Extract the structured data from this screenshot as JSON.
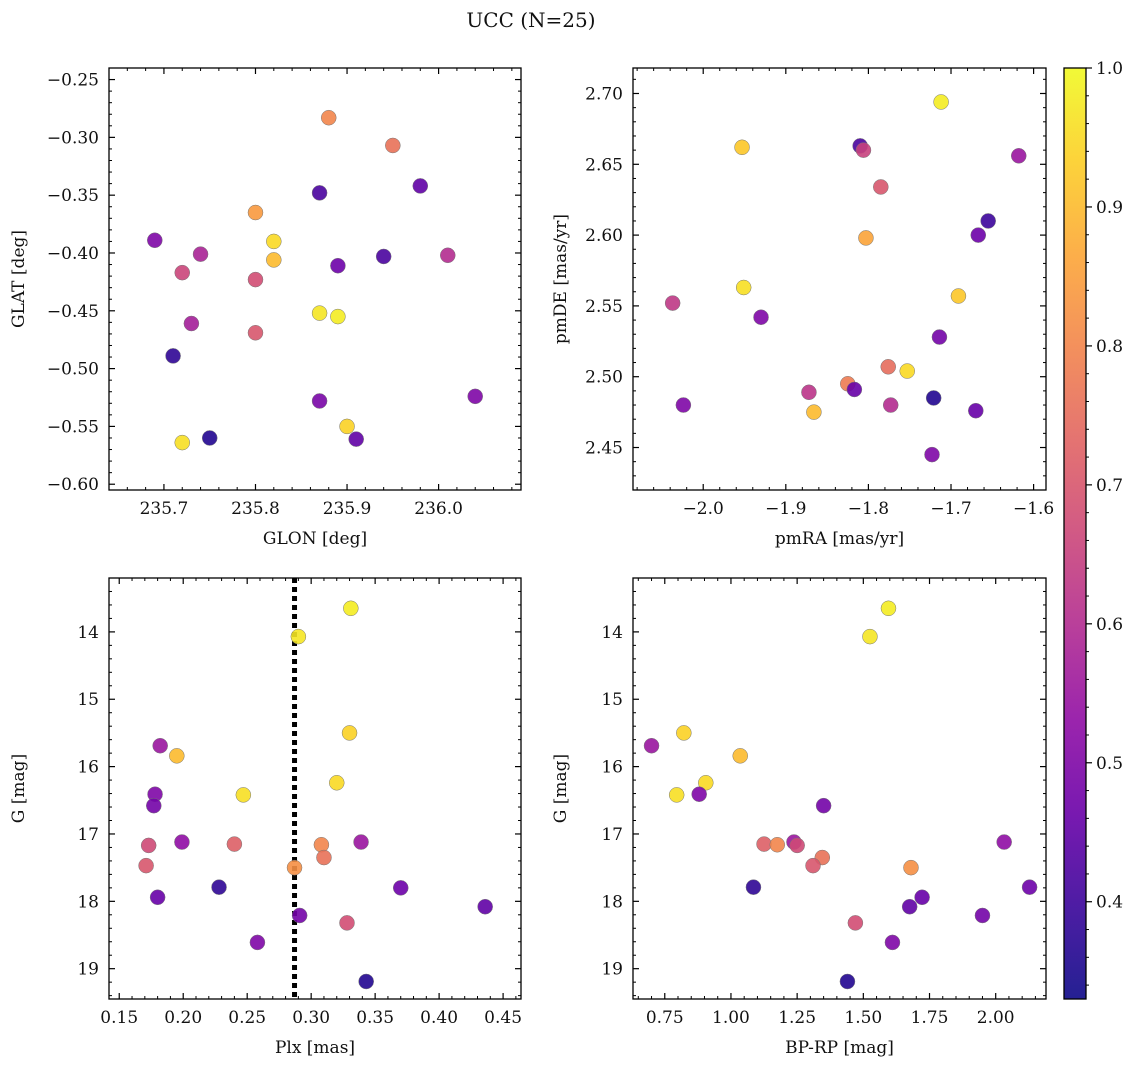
{
  "figure": {
    "title": "UCC (N=25)"
  },
  "colorbar": {
    "vmin": 0.33,
    "vmax": 1.0,
    "ticks": [
      0.4,
      0.5,
      0.6,
      0.7,
      0.8,
      0.9,
      1.0
    ],
    "tick_labels": [
      "0.4",
      "0.5",
      "0.6",
      "0.7",
      "0.8",
      "0.9",
      "1.0"
    ],
    "colormap": [
      "#0d0887",
      "#3a049a",
      "#6a00a8",
      "#900da4",
      "#b12a90",
      "#cc4778",
      "#e16462",
      "#f2844b",
      "#fca636",
      "#fcce25",
      "#f0f921"
    ]
  },
  "chart_data": [
    {
      "type": "scatter",
      "panel": "top-left",
      "xlabel": "GLON [deg]",
      "ylabel": "GLAT [deg]",
      "xlim": [
        235.64,
        236.09
      ],
      "ylim": [
        -0.605,
        -0.24
      ],
      "y_inverted": false,
      "xticks": [
        235.7,
        235.8,
        235.9,
        236.0
      ],
      "xtick_labels": [
        "235.7",
        "235.8",
        "235.9",
        "236.0"
      ],
      "yticks": [
        -0.6,
        -0.55,
        -0.5,
        -0.45,
        -0.4,
        -0.35,
        -0.3,
        -0.25
      ],
      "ytick_labels": [
        "−0.60",
        "−0.55",
        "−0.50",
        "−0.45",
        "−0.40",
        "−0.35",
        "−0.30",
        "−0.25"
      ],
      "points": [
        {
          "x": 235.88,
          "y": -0.283,
          "c": 0.8
        },
        {
          "x": 235.95,
          "y": -0.307,
          "c": 0.76
        },
        {
          "x": 235.98,
          "y": -0.342,
          "c": 0.45
        },
        {
          "x": 235.87,
          "y": -0.348,
          "c": 0.42
        },
        {
          "x": 235.8,
          "y": -0.365,
          "c": 0.84
        },
        {
          "x": 235.69,
          "y": -0.389,
          "c": 0.5
        },
        {
          "x": 235.82,
          "y": -0.39,
          "c": 0.95
        },
        {
          "x": 235.74,
          "y": -0.401,
          "c": 0.58
        },
        {
          "x": 236.01,
          "y": -0.402,
          "c": 0.6
        },
        {
          "x": 235.94,
          "y": -0.403,
          "c": 0.42
        },
        {
          "x": 235.82,
          "y": -0.406,
          "c": 0.9
        },
        {
          "x": 235.89,
          "y": -0.411,
          "c": 0.47
        },
        {
          "x": 235.72,
          "y": -0.417,
          "c": 0.66
        },
        {
          "x": 235.8,
          "y": -0.423,
          "c": 0.68
        },
        {
          "x": 235.87,
          "y": -0.452,
          "c": 0.97
        },
        {
          "x": 235.89,
          "y": -0.455,
          "c": 0.98
        },
        {
          "x": 235.73,
          "y": -0.461,
          "c": 0.57
        },
        {
          "x": 235.8,
          "y": -0.469,
          "c": 0.7
        },
        {
          "x": 235.71,
          "y": -0.489,
          "c": 0.38
        },
        {
          "x": 236.04,
          "y": -0.524,
          "c": 0.5
        },
        {
          "x": 235.87,
          "y": -0.528,
          "c": 0.49
        },
        {
          "x": 235.9,
          "y": -0.55,
          "c": 0.94
        },
        {
          "x": 235.75,
          "y": -0.56,
          "c": 0.36
        },
        {
          "x": 235.91,
          "y": -0.561,
          "c": 0.45
        },
        {
          "x": 235.72,
          "y": -0.564,
          "c": 0.96
        }
      ]
    },
    {
      "type": "scatter",
      "panel": "top-right",
      "xlabel": "pmRA [mas/yr]",
      "ylabel": "pmDE [mas/yr]",
      "xlim": [
        -2.085,
        -1.585
      ],
      "ylim": [
        2.42,
        2.718
      ],
      "y_inverted": false,
      "xticks": [
        -2.0,
        -1.9,
        -1.8,
        -1.7,
        -1.6
      ],
      "xtick_labels": [
        "−2.0",
        "−1.9",
        "−1.8",
        "−1.7",
        "−1.6"
      ],
      "yticks": [
        2.45,
        2.5,
        2.55,
        2.6,
        2.65,
        2.7
      ],
      "ytick_labels": [
        "2.45",
        "2.50",
        "2.55",
        "2.60",
        "2.65",
        "2.70"
      ],
      "points": [
        {
          "x": -1.712,
          "y": 2.694,
          "c": 0.98
        },
        {
          "x": -1.81,
          "y": 2.663,
          "c": 0.42
        },
        {
          "x": -1.953,
          "y": 2.662,
          "c": 0.92
        },
        {
          "x": -1.806,
          "y": 2.66,
          "c": 0.65
        },
        {
          "x": -1.618,
          "y": 2.656,
          "c": 0.55
        },
        {
          "x": -1.785,
          "y": 2.634,
          "c": 0.7
        },
        {
          "x": -1.655,
          "y": 2.61,
          "c": 0.4
        },
        {
          "x": -1.667,
          "y": 2.6,
          "c": 0.47
        },
        {
          "x": -1.803,
          "y": 2.598,
          "c": 0.86
        },
        {
          "x": -1.951,
          "y": 2.563,
          "c": 0.96
        },
        {
          "x": -1.691,
          "y": 2.557,
          "c": 0.92
        },
        {
          "x": -2.037,
          "y": 2.552,
          "c": 0.63
        },
        {
          "x": -1.93,
          "y": 2.542,
          "c": 0.5
        },
        {
          "x": -1.714,
          "y": 2.528,
          "c": 0.48
        },
        {
          "x": -1.776,
          "y": 2.507,
          "c": 0.75
        },
        {
          "x": -1.753,
          "y": 2.504,
          "c": 0.95
        },
        {
          "x": -1.825,
          "y": 2.495,
          "c": 0.78
        },
        {
          "x": -1.817,
          "y": 2.491,
          "c": 0.46
        },
        {
          "x": -1.872,
          "y": 2.489,
          "c": 0.62
        },
        {
          "x": -1.721,
          "y": 2.485,
          "c": 0.36
        },
        {
          "x": -2.024,
          "y": 2.48,
          "c": 0.5
        },
        {
          "x": -1.773,
          "y": 2.48,
          "c": 0.6
        },
        {
          "x": -1.67,
          "y": 2.476,
          "c": 0.46
        },
        {
          "x": -1.866,
          "y": 2.475,
          "c": 0.9
        },
        {
          "x": -1.723,
          "y": 2.445,
          "c": 0.5
        }
      ]
    },
    {
      "type": "scatter",
      "panel": "bottom-left",
      "xlabel": "Plx [mas]",
      "ylabel": "G [mag]",
      "xlim": [
        0.142,
        0.464
      ],
      "ylim": [
        13.2,
        19.45
      ],
      "y_inverted": true,
      "xticks": [
        0.15,
        0.2,
        0.25,
        0.3,
        0.35,
        0.4,
        0.45
      ],
      "xtick_labels": [
        "0.15",
        "0.20",
        "0.25",
        "0.30",
        "0.35",
        "0.40",
        "0.45"
      ],
      "yticks": [
        14,
        15,
        16,
        17,
        18,
        19
      ],
      "ytick_labels": [
        "14",
        "15",
        "16",
        "17",
        "18",
        "19"
      ],
      "vline": {
        "x": 0.287,
        "style": "dotted"
      },
      "points": [
        {
          "x": 0.331,
          "y": 13.65,
          "c": 0.98
        },
        {
          "x": 0.29,
          "y": 14.07,
          "c": 0.97
        },
        {
          "x": 0.33,
          "y": 15.5,
          "c": 0.94
        },
        {
          "x": 0.182,
          "y": 15.69,
          "c": 0.55
        },
        {
          "x": 0.195,
          "y": 15.84,
          "c": 0.9
        },
        {
          "x": 0.32,
          "y": 16.24,
          "c": 0.95
        },
        {
          "x": 0.178,
          "y": 16.41,
          "c": 0.5
        },
        {
          "x": 0.247,
          "y": 16.42,
          "c": 0.96
        },
        {
          "x": 0.177,
          "y": 16.58,
          "c": 0.48
        },
        {
          "x": 0.199,
          "y": 17.12,
          "c": 0.53
        },
        {
          "x": 0.339,
          "y": 17.12,
          "c": 0.55
        },
        {
          "x": 0.24,
          "y": 17.15,
          "c": 0.72
        },
        {
          "x": 0.308,
          "y": 17.16,
          "c": 0.8
        },
        {
          "x": 0.173,
          "y": 17.17,
          "c": 0.67
        },
        {
          "x": 0.31,
          "y": 17.35,
          "c": 0.76
        },
        {
          "x": 0.287,
          "y": 17.5,
          "c": 0.82
        },
        {
          "x": 0.171,
          "y": 17.47,
          "c": 0.7
        },
        {
          "x": 0.228,
          "y": 17.79,
          "c": 0.38
        },
        {
          "x": 0.37,
          "y": 17.8,
          "c": 0.47
        },
        {
          "x": 0.18,
          "y": 17.94,
          "c": 0.46
        },
        {
          "x": 0.436,
          "y": 18.08,
          "c": 0.45
        },
        {
          "x": 0.291,
          "y": 18.21,
          "c": 0.48
        },
        {
          "x": 0.328,
          "y": 18.32,
          "c": 0.68
        },
        {
          "x": 0.258,
          "y": 18.61,
          "c": 0.5
        },
        {
          "x": 0.343,
          "y": 19.19,
          "c": 0.36
        }
      ]
    },
    {
      "type": "scatter",
      "panel": "bottom-right",
      "xlabel": "BP-RP [mag]",
      "ylabel": "G [mag]",
      "xlim": [
        0.63,
        2.19
      ],
      "ylim": [
        13.2,
        19.45
      ],
      "y_inverted": true,
      "xticks": [
        0.75,
        1.0,
        1.25,
        1.5,
        1.75,
        2.0
      ],
      "xtick_labels": [
        "0.75",
        "1.00",
        "1.25",
        "1.50",
        "1.75",
        "2.00"
      ],
      "yticks": [
        14,
        15,
        16,
        17,
        18,
        19
      ],
      "ytick_labels": [
        "14",
        "15",
        "16",
        "17",
        "18",
        "19"
      ],
      "points": [
        {
          "x": 1.595,
          "y": 13.65,
          "c": 0.98
        },
        {
          "x": 1.525,
          "y": 14.07,
          "c": 0.97
        },
        {
          "x": 0.822,
          "y": 15.5,
          "c": 0.94
        },
        {
          "x": 0.7,
          "y": 15.69,
          "c": 0.55
        },
        {
          "x": 1.035,
          "y": 15.84,
          "c": 0.9
        },
        {
          "x": 0.905,
          "y": 16.24,
          "c": 0.95
        },
        {
          "x": 0.88,
          "y": 16.41,
          "c": 0.5
        },
        {
          "x": 0.795,
          "y": 16.42,
          "c": 0.96
        },
        {
          "x": 1.35,
          "y": 16.58,
          "c": 0.48
        },
        {
          "x": 2.032,
          "y": 17.12,
          "c": 0.53
        },
        {
          "x": 1.238,
          "y": 17.12,
          "c": 0.55
        },
        {
          "x": 1.125,
          "y": 17.15,
          "c": 0.72
        },
        {
          "x": 1.175,
          "y": 17.16,
          "c": 0.8
        },
        {
          "x": 1.25,
          "y": 17.17,
          "c": 0.67
        },
        {
          "x": 1.345,
          "y": 17.35,
          "c": 0.76
        },
        {
          "x": 1.68,
          "y": 17.5,
          "c": 0.82
        },
        {
          "x": 1.31,
          "y": 17.47,
          "c": 0.7
        },
        {
          "x": 1.085,
          "y": 17.79,
          "c": 0.38
        },
        {
          "x": 2.128,
          "y": 17.79,
          "c": 0.47
        },
        {
          "x": 1.722,
          "y": 17.94,
          "c": 0.46
        },
        {
          "x": 1.675,
          "y": 18.08,
          "c": 0.45
        },
        {
          "x": 1.95,
          "y": 18.21,
          "c": 0.48
        },
        {
          "x": 1.47,
          "y": 18.32,
          "c": 0.68
        },
        {
          "x": 1.61,
          "y": 18.61,
          "c": 0.5
        },
        {
          "x": 1.44,
          "y": 19.19,
          "c": 0.36
        }
      ]
    }
  ]
}
